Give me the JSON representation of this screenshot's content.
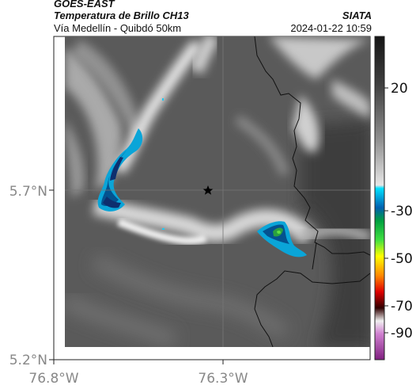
{
  "header": {
    "satellite": "GOES-EAST",
    "product": "Temperatura de Brillo CH13",
    "route": "Vía Medellín - Quibdó 50km",
    "org": "SIATA",
    "datetime": "2024-01-22 10:59"
  },
  "axes": {
    "y_ticks": [
      "5.7°N",
      "5.2°N"
    ],
    "x_ticks": [
      "76.8°W",
      "76.3°W"
    ]
  },
  "colorbar": {
    "ticks": [
      "20",
      "-30",
      "-50",
      "-70",
      "-90"
    ]
  },
  "map": {
    "marker": "star-marker",
    "gridlines": true
  }
}
